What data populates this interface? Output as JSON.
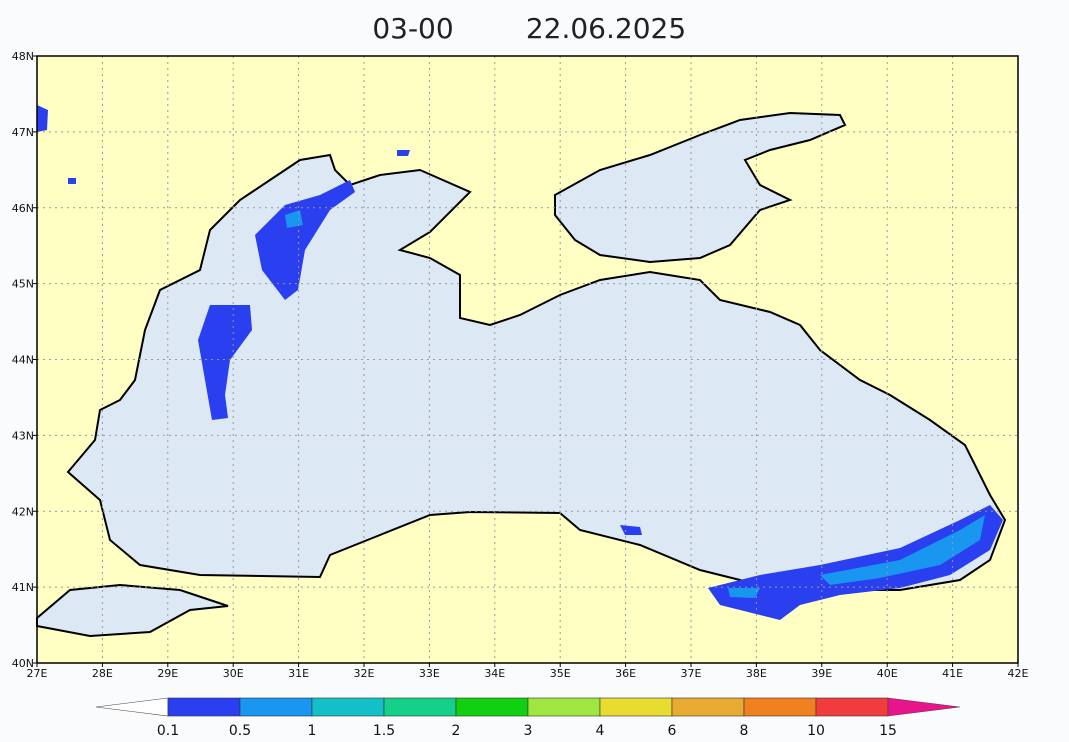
{
  "header": {
    "time": "03-00",
    "date": "22.06.2025"
  },
  "map": {
    "lon_labels": [
      "27E",
      "28E",
      "29E",
      "30E",
      "31E",
      "32E",
      "33E",
      "34E",
      "35E",
      "36E",
      "37E",
      "38E",
      "39E",
      "40E",
      "41E",
      "42E"
    ],
    "lat_labels": [
      "40N",
      "41N",
      "42N",
      "43N",
      "44N",
      "45N",
      "46N",
      "47N",
      "48N"
    ]
  },
  "colorbar": {
    "labels": [
      0.1,
      0.5,
      1,
      1.5,
      2,
      3,
      4,
      6,
      8,
      10,
      15
    ],
    "colors": [
      "#ffffff",
      "#2a3ff0",
      "#1896f0",
      "#14c0c8",
      "#14d088",
      "#10d010",
      "#a0e640",
      "#e8dc30",
      "#e8aa30",
      "#f08020",
      "#f03c3c",
      "#e8148c"
    ]
  }
}
